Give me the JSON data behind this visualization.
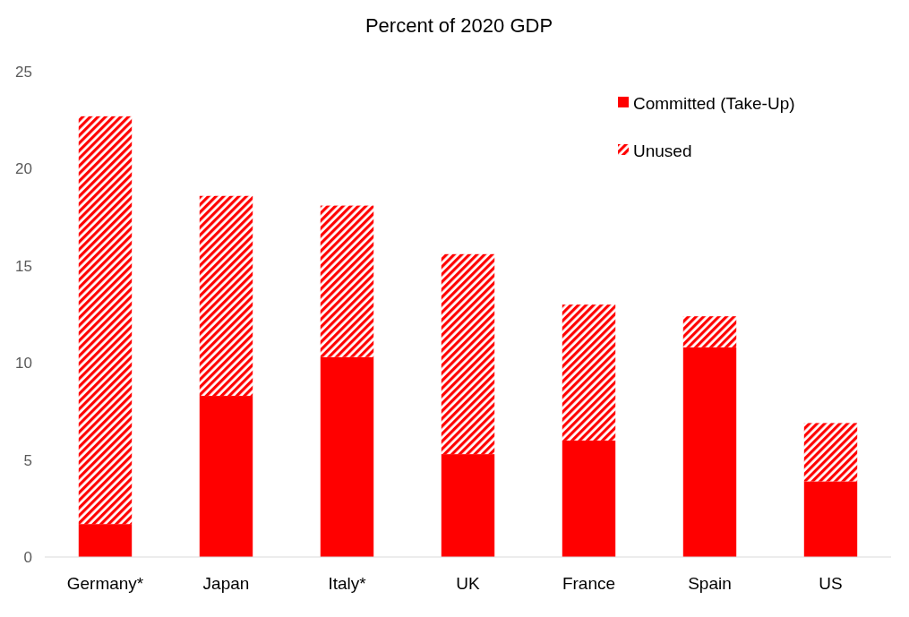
{
  "chart_data": {
    "type": "bar",
    "title": "Percent of 2020 GDP",
    "stacked": true,
    "categories": [
      "Germany*",
      "Japan",
      "Italy*",
      "UK",
      "France",
      "Spain",
      "US"
    ],
    "series": [
      {
        "name": "Committed (Take-Up)",
        "color": "#ff0000",
        "values": [
          1.7,
          8.3,
          10.3,
          5.3,
          6.0,
          10.8,
          3.9
        ]
      },
      {
        "name": "Unused",
        "color": "#ff0000",
        "values": [
          21.0,
          10.3,
          7.8,
          10.3,
          7.0,
          1.6,
          3.0
        ]
      }
    ],
    "ylim": [
      0,
      25
    ],
    "yticks": [
      0,
      5,
      10,
      15,
      20,
      25
    ],
    "grid": false,
    "legend": "top right"
  }
}
